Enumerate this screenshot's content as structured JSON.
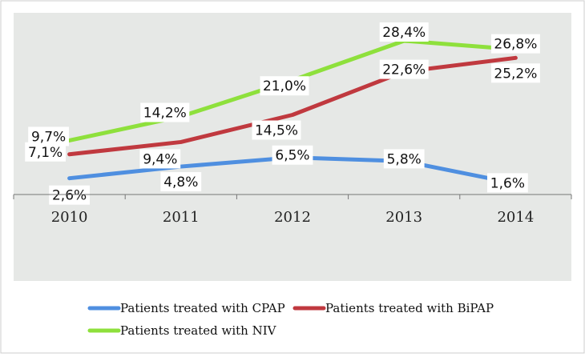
{
  "chart_data": {
    "type": "line",
    "title": "",
    "xlabel": "",
    "ylabel": "",
    "categories": [
      "2010",
      "2011",
      "2012",
      "2013",
      "2014"
    ],
    "ylim": [
      -0.05,
      0.3
    ],
    "grid": false,
    "legend_position": "bottom",
    "series": [
      {
        "name": "Patients treated with CPAP",
        "color": "#4f8fe0",
        "values": [
          0.026,
          0.048,
          0.065,
          0.058,
          0.016
        ],
        "labels": [
          "2,6%",
          "4,8%",
          "6,5%",
          "5,8%",
          "1,6%"
        ]
      },
      {
        "name": "Patients treated with BiPAP",
        "color": "#c0393f",
        "values": [
          0.071,
          0.094,
          0.145,
          0.226,
          0.252
        ],
        "labels": [
          "7,1%",
          "9,4%",
          "14,5%",
          "22,6%",
          "25,2%"
        ]
      },
      {
        "name": "Patients treated with NIV",
        "color": "#8ee03c",
        "values": [
          0.097,
          0.142,
          0.21,
          0.284,
          0.268
        ],
        "labels": [
          "9,7%",
          "14,2%",
          "21,0%",
          "28,4%",
          "26,8%"
        ]
      }
    ]
  },
  "colors": {
    "plot_background": "#e6e8e6",
    "axis": "#777777"
  }
}
